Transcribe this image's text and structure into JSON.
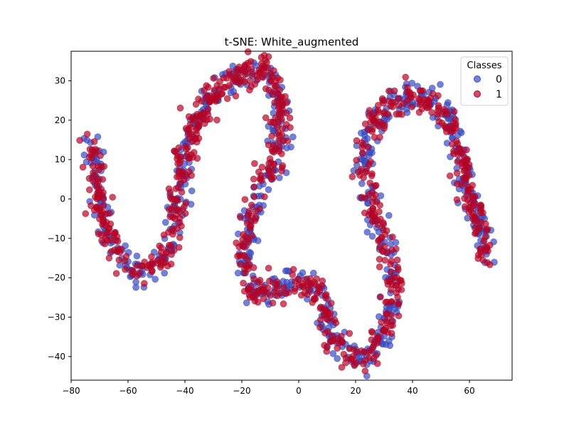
{
  "chart_data": {
    "type": "scatter",
    "title": "t-SNE: White_augmented",
    "xlabel": "",
    "ylabel": "",
    "xlim": [
      -80,
      75
    ],
    "ylim": [
      -46,
      37.5
    ],
    "xticks": [
      -80,
      -60,
      -40,
      -20,
      0,
      20,
      40,
      60
    ],
    "yticks": [
      -40,
      -30,
      -20,
      -10,
      0,
      10,
      20,
      30
    ],
    "grid": false,
    "legend": {
      "title": "Classes",
      "placement": "top-right"
    },
    "series": [
      {
        "name": "0",
        "color": "#3b4cc0",
        "count": 700
      },
      {
        "name": "1",
        "color": "#b40426",
        "count": 900
      }
    ],
    "curve_path": [
      [
        -72.5,
        14.5
      ],
      [
        -72.2,
        10
      ],
      [
        -71.5,
        5
      ],
      [
        -70,
        0
      ],
      [
        -68.5,
        -5
      ],
      [
        -66,
        -10
      ],
      [
        -63,
        -14
      ],
      [
        -60,
        -17
      ],
      [
        -57,
        -18.5
      ],
      [
        -53,
        -18
      ],
      [
        -50,
        -17
      ],
      [
        -47,
        -14
      ],
      [
        -45,
        -10
      ],
      [
        -43,
        -4
      ],
      [
        -42,
        2
      ],
      [
        -41,
        8
      ],
      [
        -40,
        12
      ],
      [
        -38,
        16
      ],
      [
        -35,
        20
      ],
      [
        -32,
        24
      ],
      [
        -28,
        28
      ],
      [
        -23,
        30
      ],
      [
        -19,
        32
      ],
      [
        -15,
        33
      ],
      [
        -12,
        32
      ],
      [
        -9,
        29
      ],
      [
        -7,
        25
      ],
      [
        -6,
        20
      ],
      [
        -6.5,
        15
      ],
      [
        -8,
        10
      ],
      [
        -11,
        5
      ],
      [
        -14,
        1
      ],
      [
        -16,
        -3
      ],
      [
        -18,
        -8
      ],
      [
        -19,
        -13
      ],
      [
        -19.5,
        -18
      ],
      [
        -18,
        -22
      ],
      [
        -14,
        -24
      ],
      [
        -10,
        -24
      ],
      [
        -6,
        -23
      ],
      [
        -2,
        -21
      ],
      [
        2,
        -21
      ],
      [
        6,
        -22
      ],
      [
        9,
        -26
      ],
      [
        11,
        -32
      ],
      [
        14,
        -37
      ],
      [
        18,
        -40
      ],
      [
        22,
        -41
      ],
      [
        26,
        -39
      ],
      [
        29,
        -35
      ],
      [
        32,
        -30
      ],
      [
        33,
        -25
      ],
      [
        33,
        -18
      ],
      [
        31,
        -12
      ],
      [
        28,
        -7
      ],
      [
        26,
        -2
      ],
      [
        24,
        3
      ],
      [
        23,
        8
      ],
      [
        24,
        14
      ],
      [
        27,
        20
      ],
      [
        31,
        24
      ],
      [
        35,
        25
      ],
      [
        40,
        26
      ],
      [
        45,
        25
      ],
      [
        49,
        23
      ],
      [
        53,
        19
      ],
      [
        56,
        13
      ],
      [
        58,
        7
      ],
      [
        60,
        1
      ],
      [
        63,
        -5
      ],
      [
        65,
        -11
      ],
      [
        66,
        -15
      ]
    ],
    "spread": 1.8
  }
}
